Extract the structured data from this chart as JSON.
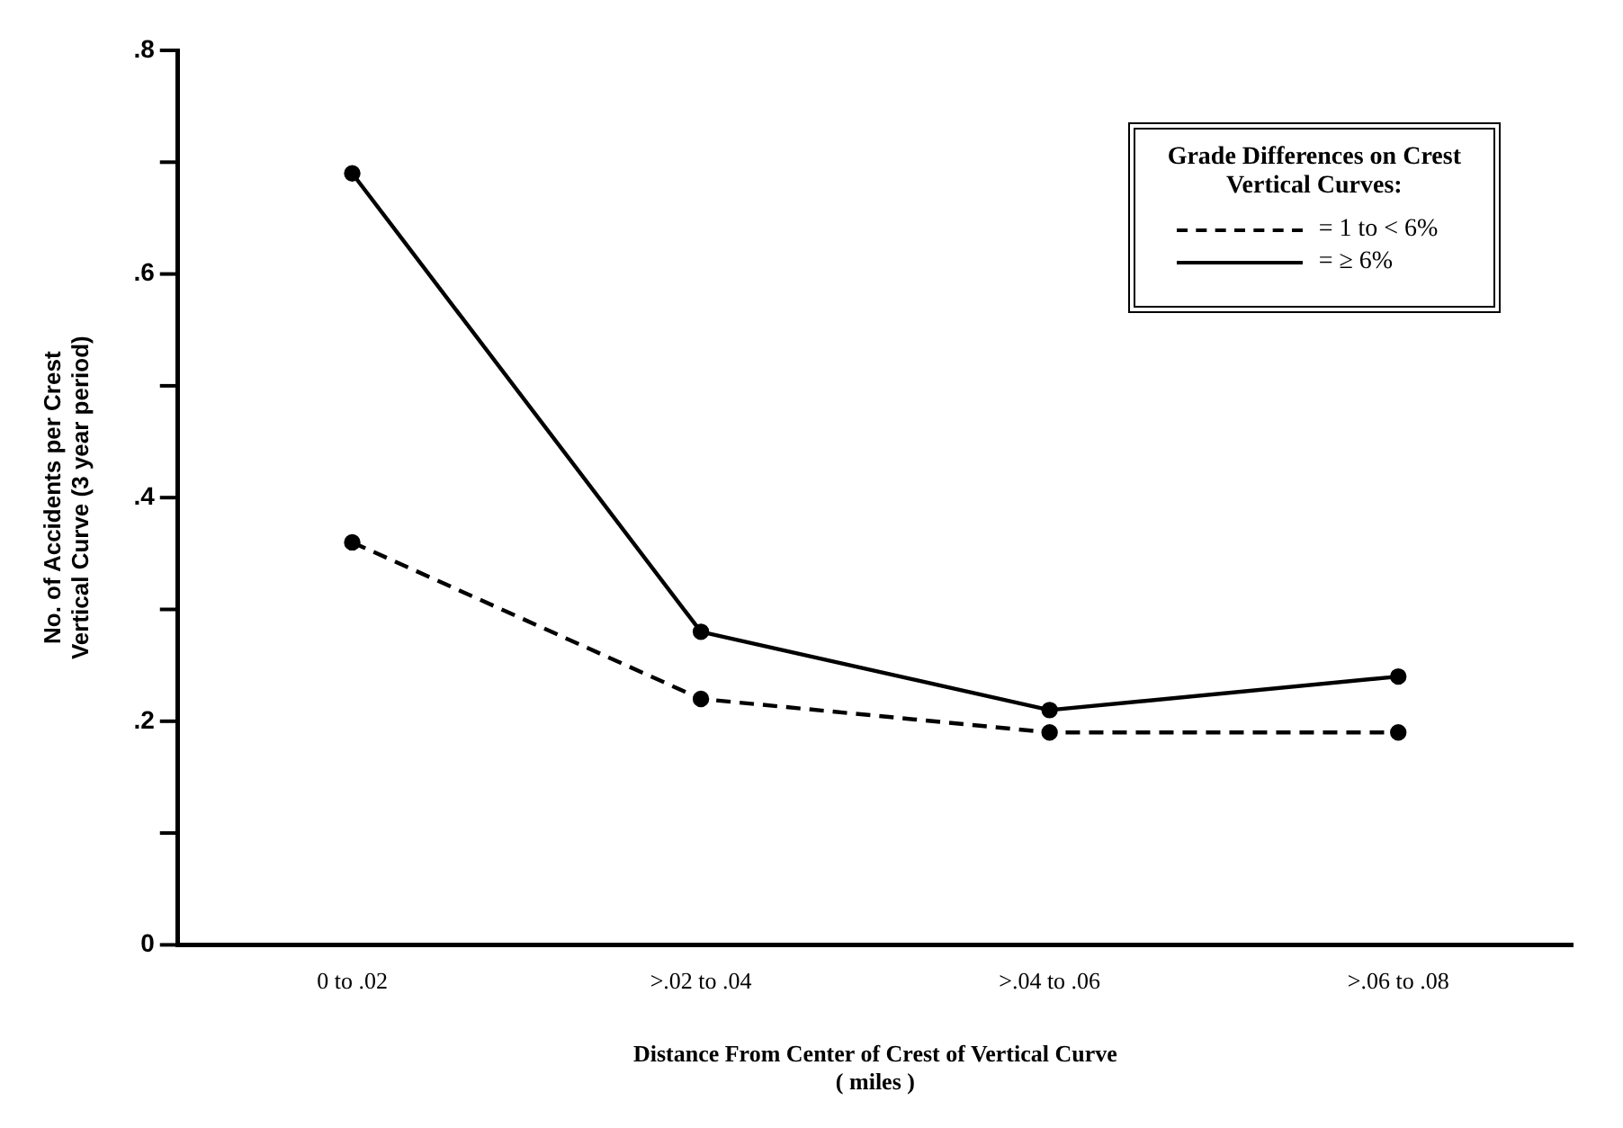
{
  "chart_data": {
    "type": "line",
    "xlabel": "Distance From Center of Crest of Vertical Curve\n( miles )",
    "ylabel": "No. of Accidents per Crest\nVertical Curve (3 year period)",
    "legend_title": "Grade Differences on Crest\nVertical Curves:",
    "categories": [
      "0 to .02",
      ">.02 to .04",
      ">.04 to .06",
      ">.06 to .08"
    ],
    "series": [
      {
        "name": "= 1 to < 6%",
        "color": "#000000",
        "line_style": "dashed",
        "values": [
          0.36,
          0.22,
          0.19,
          0.19
        ]
      },
      {
        "name": "= ≥ 6%",
        "color": "#000000",
        "line_style": "solid",
        "values": [
          0.69,
          0.28,
          0.21,
          0.24
        ]
      }
    ],
    "ylim": [
      0,
      0.8
    ],
    "yticks": [
      {
        "value": 0,
        "label": "0"
      },
      {
        "value": 0.1,
        "label": null
      },
      {
        "value": 0.2,
        "label": ".2"
      },
      {
        "value": 0.3,
        "label": null
      },
      {
        "value": 0.4,
        "label": ".4"
      },
      {
        "value": 0.5,
        "label": null
      },
      {
        "value": 0.6,
        "label": ".6"
      },
      {
        "value": 0.7,
        "label": null
      },
      {
        "value": 0.8,
        "label": ".8"
      }
    ],
    "grid": false,
    "legend": "top right",
    "marker": "circle"
  }
}
